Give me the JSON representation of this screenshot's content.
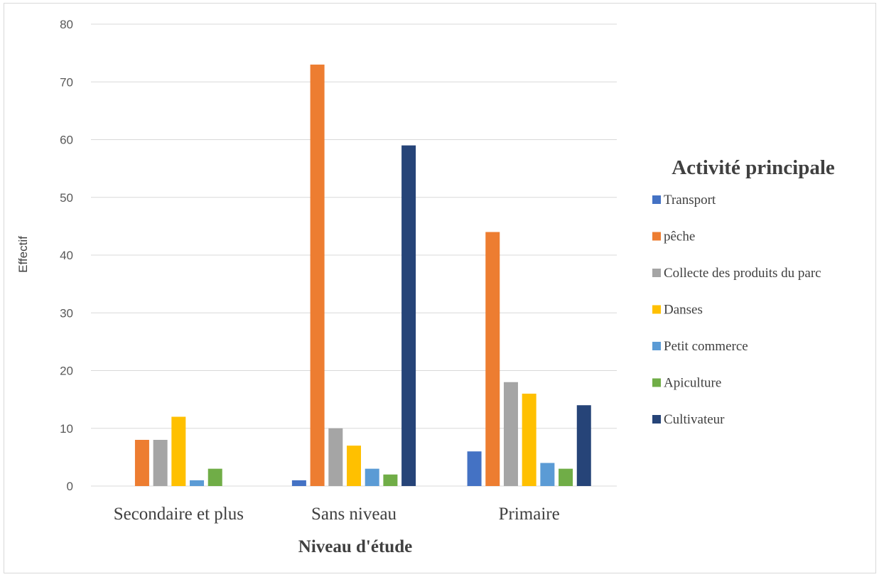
{
  "chart_data": {
    "type": "bar",
    "title": "",
    "xlabel": "Niveau d'étude",
    "ylabel": "Effectif",
    "ylim": [
      0,
      80
    ],
    "yticks": [
      "0",
      "10",
      "20",
      "30",
      "40",
      "50",
      "60",
      "70",
      "80"
    ],
    "grid": true,
    "legend_title": "Activité principale",
    "legend_position": "right",
    "categories": [
      "Secondaire et plus",
      "Sans niveau",
      "Primaire"
    ],
    "series": [
      {
        "name": "Transport",
        "color": "#4472C4",
        "values": [
          0,
          1,
          6
        ]
      },
      {
        "name": "pêche",
        "color": "#ED7D31",
        "values": [
          8,
          73,
          44
        ]
      },
      {
        "name": "Collecte des produits du parc",
        "color": "#A5A5A5",
        "values": [
          8,
          10,
          18
        ]
      },
      {
        "name": "Danses",
        "color": "#FFC000",
        "values": [
          12,
          7,
          16
        ]
      },
      {
        "name": "Petit commerce",
        "color": "#5B9BD5",
        "values": [
          1,
          3,
          4
        ]
      },
      {
        "name": "Apiculture",
        "color": "#70AD47",
        "values": [
          3,
          2,
          3
        ]
      },
      {
        "name": "Cultivateur",
        "color": "#264478",
        "values": [
          0,
          59,
          14
        ]
      }
    ]
  }
}
